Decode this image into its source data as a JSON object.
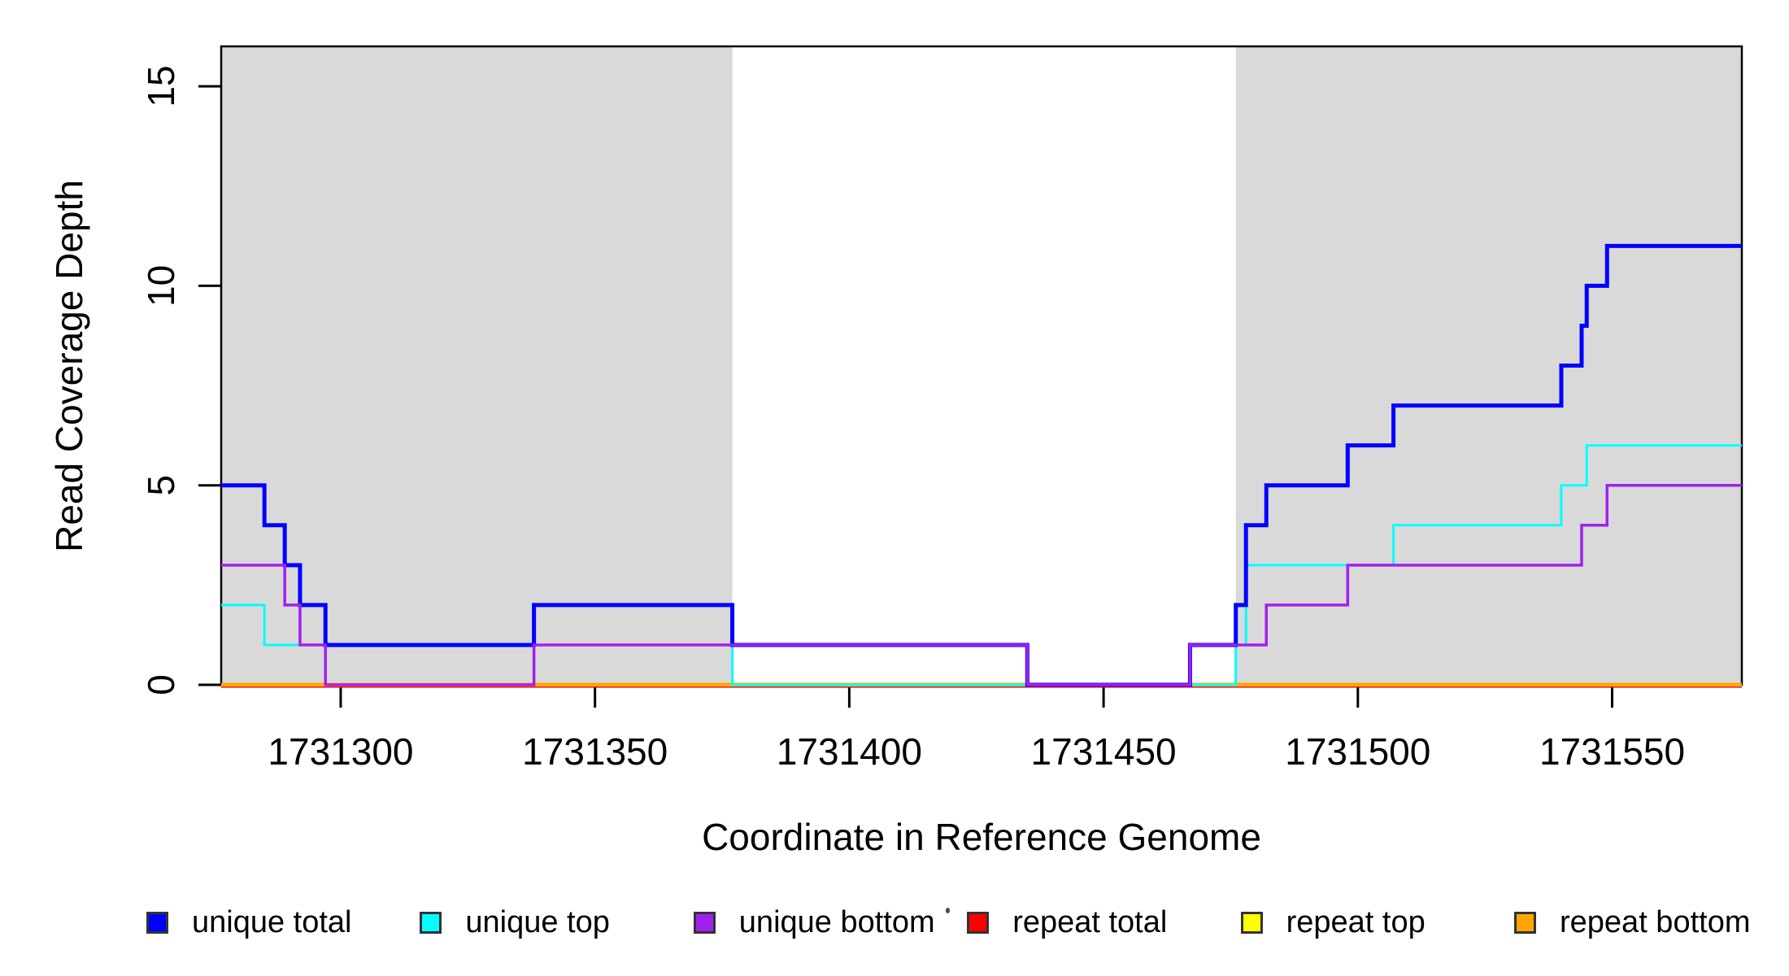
{
  "figure": {
    "x_label": "Coordinate in Reference Genome",
    "y_label": "Read Coverage Depth"
  },
  "legend": {
    "items": [
      {
        "label": "unique total",
        "color": "#0000FF"
      },
      {
        "label": "unique top",
        "color": "#00FFFF"
      },
      {
        "label": "unique bottom",
        "color": "#A020F0"
      },
      {
        "label": "repeat total",
        "color": "#FF0000"
      },
      {
        "label": "repeat top",
        "color": "#FFFF00"
      },
      {
        "label": "repeat bottom",
        "color": "#FFA500"
      }
    ]
  },
  "chart_data": {
    "type": "line",
    "subtype": "step",
    "title": "",
    "xlabel": "Coordinate in Reference Genome",
    "ylabel": "Read Coverage Depth",
    "xlim": [
      1731276.5,
      1731575.5
    ],
    "ylim": [
      0,
      16
    ],
    "x_ticks": [
      1731300,
      1731350,
      1731400,
      1731450,
      1731500,
      1731550
    ],
    "y_ticks": [
      0,
      5,
      10,
      15
    ],
    "grid": false,
    "legend_position": "bottom",
    "plot_bg": "#FFFFFF",
    "shading_color": "#D9D9D9",
    "background_regions": [
      {
        "name": "left-repeat-region",
        "x0": 1731276.5,
        "x1": 1731377,
        "color": "#D9D9D9"
      },
      {
        "name": "right-repeat-region",
        "x0": 1731476,
        "x1": 1731575.5,
        "color": "#D9D9D9"
      }
    ],
    "series": [
      {
        "name": "unique total",
        "color": "#0000FF",
        "width": 5,
        "z": 5,
        "dy": 0,
        "steps": [
          [
            1731276.5,
            5
          ],
          [
            1731285,
            4
          ],
          [
            1731289,
            3
          ],
          [
            1731292,
            2
          ],
          [
            1731297,
            1
          ],
          [
            1731338,
            2
          ],
          [
            1731377,
            1
          ],
          [
            1731435,
            0
          ],
          [
            1731467,
            1
          ],
          [
            1731476,
            2
          ],
          [
            1731478,
            4
          ],
          [
            1731482,
            5
          ],
          [
            1731498,
            6
          ],
          [
            1731507,
            7
          ],
          [
            1731540,
            8
          ],
          [
            1731544,
            9
          ],
          [
            1731545,
            10
          ],
          [
            1731549,
            11
          ]
        ]
      },
      {
        "name": "unique top",
        "color": "#00FFFF",
        "width": 3,
        "z": 4,
        "dy": 0,
        "steps": [
          [
            1731276.5,
            2
          ],
          [
            1731285,
            1
          ],
          [
            1731377,
            0
          ],
          [
            1731476,
            1
          ],
          [
            1731478,
            3
          ],
          [
            1731507,
            4
          ],
          [
            1731540,
            5
          ],
          [
            1731545,
            6
          ]
        ]
      },
      {
        "name": "unique bottom",
        "color": "#A020F0",
        "width": 3.5,
        "z": 6,
        "dy": 0,
        "steps": [
          [
            1731276.5,
            3
          ],
          [
            1731289,
            2
          ],
          [
            1731292,
            1
          ],
          [
            1731297,
            0
          ],
          [
            1731338,
            1
          ],
          [
            1731435,
            0
          ],
          [
            1731467,
            1
          ],
          [
            1731482,
            2
          ],
          [
            1731498,
            3
          ],
          [
            1731544,
            4
          ],
          [
            1731549,
            5
          ]
        ]
      },
      {
        "name": "repeat total",
        "color": "#FF0000",
        "width": 4,
        "z": 1,
        "dy": 1.5,
        "steps": [
          [
            1731276.5,
            0
          ]
        ]
      },
      {
        "name": "repeat top",
        "color": "#FFFF00",
        "width": 3,
        "z": 2,
        "dy": 0.5,
        "steps": [
          [
            1731276.5,
            0
          ]
        ]
      },
      {
        "name": "repeat bottom",
        "color": "#FFA500",
        "width": 4,
        "z": 3,
        "dy": -0.5,
        "steps": [
          [
            1731276.5,
            0
          ]
        ]
      }
    ]
  }
}
